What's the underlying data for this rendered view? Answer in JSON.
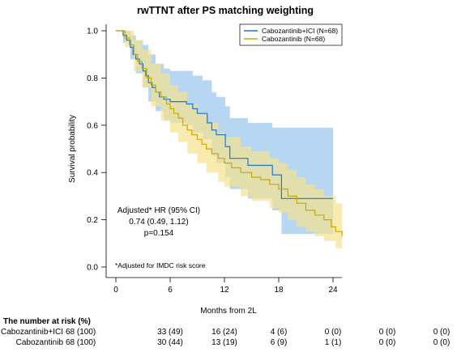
{
  "chart_data": {
    "type": "line",
    "title": "rwTTNT after PS matching weighting",
    "xlabel": "Months from 2L",
    "ylabel": "Survival probability",
    "xlim": [
      0,
      25
    ],
    "ylim": [
      0,
      1
    ],
    "x_ticks": [
      0,
      6,
      12,
      18,
      24
    ],
    "y_ticks": [
      "0.0",
      "0.2",
      "0.4",
      "0.6",
      "0.8",
      "1.0"
    ],
    "legend_position": "top-right",
    "series": [
      {
        "name": "Cabozantinib+ICI (N=68)",
        "color": "#1f77d4",
        "band_color": "#a9cfee",
        "steps": [
          [
            0,
            1.0
          ],
          [
            0.8,
            0.98
          ],
          [
            1.2,
            0.96
          ],
          [
            1.6,
            0.93
          ],
          [
            1.9,
            0.9
          ],
          [
            2.2,
            0.88
          ],
          [
            2.6,
            0.86
          ],
          [
            3.0,
            0.83
          ],
          [
            3.3,
            0.81
          ],
          [
            3.6,
            0.78
          ],
          [
            4.0,
            0.76
          ],
          [
            4.4,
            0.74
          ],
          [
            4.8,
            0.72
          ],
          [
            5.3,
            0.71
          ],
          [
            6.0,
            0.7
          ],
          [
            6.8,
            0.7
          ],
          [
            7.8,
            0.69
          ],
          [
            8.5,
            0.67
          ],
          [
            9.0,
            0.65
          ],
          [
            9.6,
            0.65
          ],
          [
            10.1,
            0.61
          ],
          [
            10.6,
            0.58
          ],
          [
            11.1,
            0.56
          ],
          [
            12.1,
            0.51
          ],
          [
            12.6,
            0.46
          ],
          [
            14.6,
            0.43
          ],
          [
            17.3,
            0.39
          ],
          [
            18.3,
            0.29
          ],
          [
            24.0,
            0.29
          ]
        ],
        "ci_lower": [
          [
            0,
            1.0
          ],
          [
            0.8,
            0.95
          ],
          [
            1.6,
            0.88
          ],
          [
            2.2,
            0.82
          ],
          [
            3.0,
            0.76
          ],
          [
            3.6,
            0.7
          ],
          [
            4.4,
            0.66
          ],
          [
            5.3,
            0.62
          ],
          [
            6.0,
            0.61
          ],
          [
            7.8,
            0.6
          ],
          [
            8.5,
            0.57
          ],
          [
            9.6,
            0.54
          ],
          [
            10.6,
            0.47
          ],
          [
            11.1,
            0.44
          ],
          [
            12.1,
            0.38
          ],
          [
            12.6,
            0.33
          ],
          [
            14.6,
            0.29
          ],
          [
            17.3,
            0.24
          ],
          [
            18.3,
            0.14
          ],
          [
            24.0,
            0.14
          ]
        ],
        "ci_upper": [
          [
            0,
            1.0
          ],
          [
            0.8,
            1.0
          ],
          [
            1.6,
            0.98
          ],
          [
            2.2,
            0.96
          ],
          [
            3.0,
            0.94
          ],
          [
            3.6,
            0.9
          ],
          [
            4.4,
            0.86
          ],
          [
            5.3,
            0.84
          ],
          [
            6.0,
            0.83
          ],
          [
            7.8,
            0.83
          ],
          [
            8.5,
            0.81
          ],
          [
            9.6,
            0.79
          ],
          [
            10.6,
            0.74
          ],
          [
            11.1,
            0.72
          ],
          [
            12.1,
            0.68
          ],
          [
            12.6,
            0.63
          ],
          [
            14.6,
            0.61
          ],
          [
            17.3,
            0.59
          ],
          [
            18.3,
            0.59
          ],
          [
            24.0,
            0.59
          ]
        ]
      },
      {
        "name": "Cabozantinib (N=68)",
        "color": "#c9a800",
        "band_color": "#f6e28e",
        "steps": [
          [
            0,
            1.0
          ],
          [
            1.0,
            0.97
          ],
          [
            1.5,
            0.94
          ],
          [
            2.0,
            0.9
          ],
          [
            2.4,
            0.87
          ],
          [
            2.9,
            0.84
          ],
          [
            3.4,
            0.8
          ],
          [
            3.9,
            0.77
          ],
          [
            4.4,
            0.74
          ],
          [
            5.0,
            0.72
          ],
          [
            5.6,
            0.69
          ],
          [
            6.0,
            0.67
          ],
          [
            6.4,
            0.65
          ],
          [
            6.9,
            0.63
          ],
          [
            7.4,
            0.6
          ],
          [
            7.9,
            0.58
          ],
          [
            8.4,
            0.56
          ],
          [
            9.0,
            0.54
          ],
          [
            9.5,
            0.52
          ],
          [
            10.0,
            0.5
          ],
          [
            10.6,
            0.48
          ],
          [
            11.3,
            0.46
          ],
          [
            12.0,
            0.44
          ],
          [
            12.8,
            0.42
          ],
          [
            13.8,
            0.4
          ],
          [
            15.0,
            0.38
          ],
          [
            16.0,
            0.37
          ],
          [
            17.0,
            0.35
          ],
          [
            18.0,
            0.33
          ],
          [
            19.0,
            0.3
          ],
          [
            20.0,
            0.27
          ],
          [
            21.0,
            0.24
          ],
          [
            22.0,
            0.22
          ],
          [
            23.0,
            0.2
          ],
          [
            23.8,
            0.17
          ],
          [
            24.3,
            0.15
          ],
          [
            25.0,
            0.13
          ]
        ],
        "ci_lower": [
          [
            0,
            1.0
          ],
          [
            1.0,
            0.93
          ],
          [
            2.0,
            0.83
          ],
          [
            2.9,
            0.76
          ],
          [
            3.9,
            0.68
          ],
          [
            5.0,
            0.62
          ],
          [
            6.0,
            0.57
          ],
          [
            6.9,
            0.53
          ],
          [
            7.9,
            0.48
          ],
          [
            9.0,
            0.44
          ],
          [
            10.0,
            0.4
          ],
          [
            11.3,
            0.36
          ],
          [
            12.0,
            0.34
          ],
          [
            13.8,
            0.3
          ],
          [
            15.0,
            0.28
          ],
          [
            17.0,
            0.25
          ],
          [
            18.0,
            0.23
          ],
          [
            19.0,
            0.2
          ],
          [
            20.0,
            0.17
          ],
          [
            21.0,
            0.15
          ],
          [
            22.0,
            0.13
          ],
          [
            23.0,
            0.11
          ],
          [
            24.3,
            0.08
          ],
          [
            25.0,
            0.06
          ]
        ],
        "ci_upper": [
          [
            0,
            1.0
          ],
          [
            1.0,
            1.0
          ],
          [
            2.0,
            0.96
          ],
          [
            2.9,
            0.92
          ],
          [
            3.9,
            0.86
          ],
          [
            5.0,
            0.82
          ],
          [
            6.0,
            0.77
          ],
          [
            6.9,
            0.74
          ],
          [
            7.9,
            0.69
          ],
          [
            9.0,
            0.65
          ],
          [
            10.0,
            0.61
          ],
          [
            11.3,
            0.57
          ],
          [
            12.0,
            0.55
          ],
          [
            13.8,
            0.51
          ],
          [
            15.0,
            0.49
          ],
          [
            17.0,
            0.46
          ],
          [
            18.0,
            0.44
          ],
          [
            19.0,
            0.41
          ],
          [
            20.0,
            0.38
          ],
          [
            21.0,
            0.35
          ],
          [
            22.0,
            0.33
          ],
          [
            23.0,
            0.3
          ],
          [
            24.3,
            0.27
          ],
          [
            25.0,
            0.25
          ]
        ]
      }
    ],
    "annotations": {
      "hr_line1": "Adjusted* HR (95% CI)",
      "hr_line2": "0.74 (0.49, 1.12)",
      "hr_line3": "p=0.154",
      "footnote": "*Adjusted for IMDC risk score"
    },
    "risk_table": {
      "title": "The number at risk (%)",
      "rows": [
        {
          "label": "Cabozantinib+ICI",
          "values": [
            "68 (100)",
            "33 (49)",
            "16 (24)",
            "4 (6)",
            "0 (0)",
            "0 (0)",
            "0 (0)"
          ]
        },
        {
          "label": "Cabozantinib",
          "values": [
            "68 (100)",
            "30 (44)",
            "13 (19)",
            "6 (9)",
            "1 (1)",
            "0 (0)",
            "0 (0)"
          ]
        }
      ]
    }
  }
}
